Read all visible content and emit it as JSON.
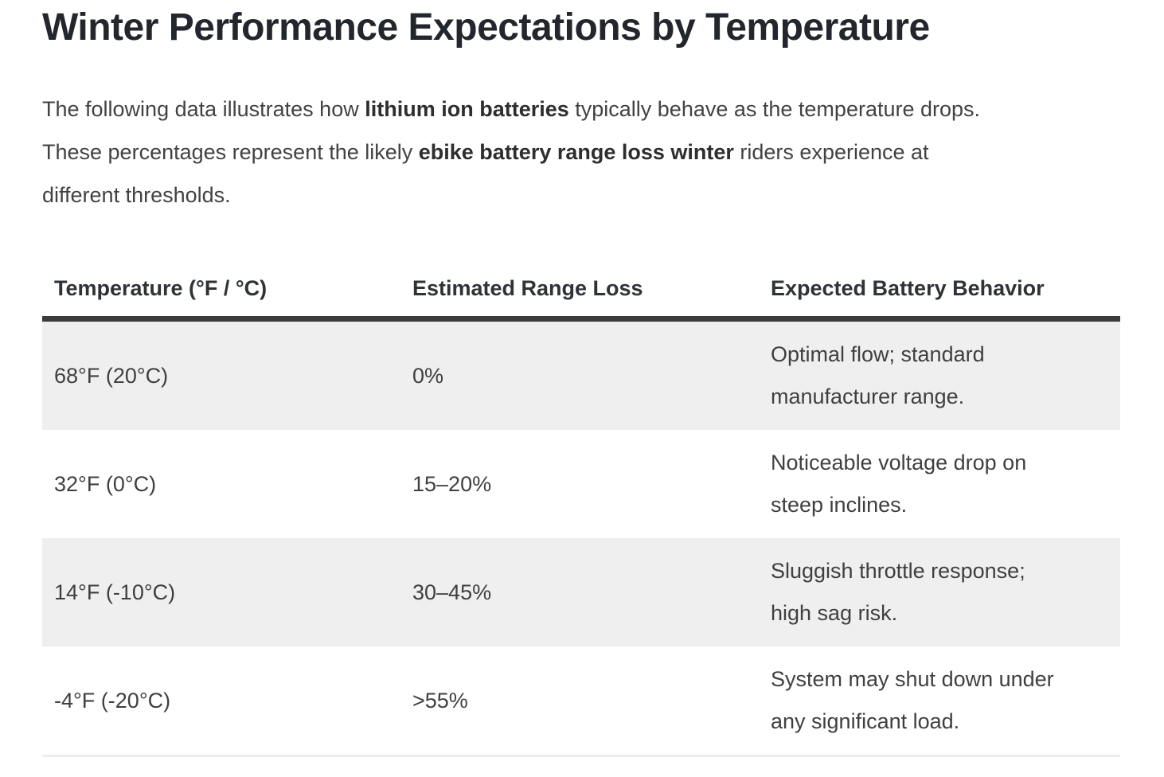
{
  "page": {
    "title": "Winter Performance Expectations by Temperature",
    "intro_lines": [
      [
        {
          "text": "The following data illustrates how ",
          "bold": false
        },
        {
          "text": "lithium ion batteries",
          "bold": true
        },
        {
          "text": " typically behave as the temperature drops.",
          "bold": false
        }
      ],
      [
        {
          "text": "These percentages represent the likely ",
          "bold": false
        },
        {
          "text": "ebike battery range loss winter",
          "bold": true
        },
        {
          "text": " riders experience at",
          "bold": false
        }
      ],
      [
        {
          "text": "different thresholds.",
          "bold": false
        }
      ]
    ]
  },
  "table": {
    "columns": [
      "Temperature (°F / °C)",
      "Estimated Range Loss",
      "Expected Battery Behavior"
    ],
    "rows": [
      {
        "temperature": "68°F (20°C)",
        "range_loss": "0%",
        "behavior_lines": [
          "Optimal flow; standard",
          "manufacturer range."
        ]
      },
      {
        "temperature": "32°F (0°C)",
        "range_loss": "15–20%",
        "behavior_lines": [
          "Noticeable voltage drop on",
          "steep inclines."
        ]
      },
      {
        "temperature": "14°F (-10°C)",
        "range_loss": "30–45%",
        "behavior_lines": [
          "Sluggish throttle response;",
          "high sag risk."
        ]
      },
      {
        "temperature": "-4°F (-20°C)",
        "range_loss": ">55%",
        "behavior_lines": [
          "System may shut down under",
          "any significant load."
        ]
      }
    ]
  },
  "colors": {
    "title_text": "#23262d",
    "body_text": "#424242",
    "table_text": "#3f3f3f",
    "header_text": "#2f3237",
    "striped_row_bg": "#efefef",
    "header_border": "#3b3b3b",
    "bottom_border": "#ededed"
  }
}
